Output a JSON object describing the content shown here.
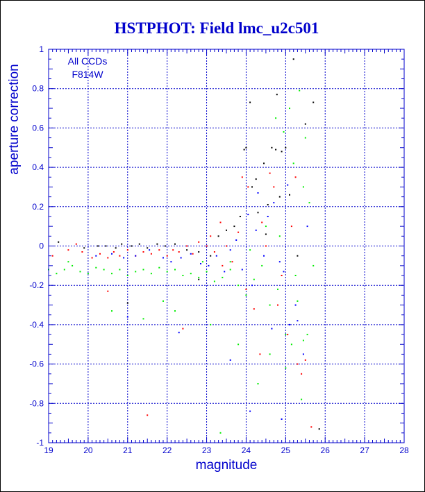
{
  "chart_data": {
    "type": "scatter",
    "title": "HSTPHOT: Field lmc_u2c501",
    "xlabel": "magnitude",
    "ylabel": "aperture correction",
    "xlim": [
      19,
      28
    ],
    "ylim": [
      -1,
      1
    ],
    "x_ticks": [
      "19",
      "20",
      "21",
      "22",
      "23",
      "24",
      "25",
      "26",
      "27",
      "28"
    ],
    "y_ticks": [
      "-1",
      "-0.8",
      "-0.6",
      "-0.4",
      "-0.2",
      "0",
      "0.2",
      "0.4",
      "0.6",
      "0.8",
      "1"
    ],
    "grid": true,
    "annotations": [
      "All CCDs",
      "F814W"
    ],
    "colors": {
      "title": "#0000cc",
      "axes": "#0000cc",
      "grid": "#0000cc",
      "black_series": "#000000",
      "red_series": "#ff0000",
      "blue_series": "#0000ff",
      "green_series": "#00ee00"
    },
    "series": [
      {
        "color": "#000000",
        "points": [
          [
            19.25,
            0.02
          ],
          [
            19.9,
            -0.01
          ],
          [
            20.25,
            0.0
          ],
          [
            20.45,
            0.0
          ],
          [
            20.7,
            -0.01
          ],
          [
            20.85,
            0.01
          ],
          [
            21.1,
            0.0
          ],
          [
            21.3,
            0.01
          ],
          [
            21.5,
            -0.01
          ],
          [
            21.75,
            0.01
          ],
          [
            21.95,
            0.0
          ],
          [
            22.2,
            0.01
          ],
          [
            22.5,
            -0.02
          ],
          [
            22.8,
            -0.03
          ],
          [
            23.1,
            -0.05
          ],
          [
            23.3,
            0.05
          ],
          [
            23.5,
            0.08
          ],
          [
            23.7,
            0.1
          ],
          [
            23.85,
            0.15
          ],
          [
            23.95,
            0.49
          ],
          [
            24.0,
            0.5
          ],
          [
            24.15,
            0.3
          ],
          [
            24.25,
            0.34
          ],
          [
            24.3,
            0.17
          ],
          [
            24.45,
            0.42
          ],
          [
            24.5,
            0.06
          ],
          [
            24.55,
            0.21
          ],
          [
            24.65,
            0.5
          ],
          [
            24.75,
            0.49
          ],
          [
            24.78,
            0.77
          ],
          [
            24.85,
            0.25
          ],
          [
            24.9,
            0.48
          ],
          [
            25.0,
            0.5
          ],
          [
            25.1,
            0.26
          ],
          [
            25.2,
            0.95
          ],
          [
            25.3,
            -0.05
          ],
          [
            25.5,
            0.62
          ],
          [
            25.7,
            0.73
          ],
          [
            24.1,
            0.73
          ],
          [
            25.85,
            -0.93
          ],
          [
            22.8,
            -0.17
          ],
          [
            21.0,
            -0.29
          ]
        ]
      },
      {
        "color": "#ff0000",
        "points": [
          [
            19.1,
            -0.05
          ],
          [
            19.5,
            -0.02
          ],
          [
            19.7,
            0.01
          ],
          [
            19.85,
            -0.03
          ],
          [
            20.1,
            -0.06
          ],
          [
            20.3,
            -0.04
          ],
          [
            20.5,
            -0.06
          ],
          [
            20.65,
            -0.03
          ],
          [
            20.8,
            -0.05
          ],
          [
            21.0,
            -0.02
          ],
          [
            21.2,
            -0.05
          ],
          [
            21.4,
            -0.03
          ],
          [
            21.6,
            -0.04
          ],
          [
            21.8,
            -0.02
          ],
          [
            22.0,
            -0.05
          ],
          [
            22.15,
            -0.02
          ],
          [
            22.3,
            -0.03
          ],
          [
            22.5,
            0.0
          ],
          [
            22.65,
            -0.04
          ],
          [
            22.8,
            0.02
          ],
          [
            23.0,
            0.0
          ],
          [
            23.1,
            0.05
          ],
          [
            23.2,
            -0.03
          ],
          [
            23.35,
            0.12
          ],
          [
            23.5,
            0.0
          ],
          [
            23.65,
            -0.08
          ],
          [
            23.8,
            0.07
          ],
          [
            23.9,
            0.35
          ],
          [
            24.05,
            0.3
          ],
          [
            24.2,
            -0.32
          ],
          [
            24.35,
            -0.55
          ],
          [
            24.5,
            0.0
          ],
          [
            24.6,
            0.37
          ],
          [
            24.7,
            0.3
          ],
          [
            24.8,
            -0.3
          ],
          [
            24.9,
            -0.15
          ],
          [
            25.05,
            -0.45
          ],
          [
            25.15,
            0.1
          ],
          [
            25.3,
            -0.6
          ],
          [
            25.4,
            -0.65
          ],
          [
            25.5,
            -0.58
          ],
          [
            25.65,
            -0.92
          ],
          [
            21.5,
            -0.86
          ],
          [
            20.5,
            -0.23
          ],
          [
            22.4,
            -0.42
          ],
          [
            23.4,
            -0.1
          ],
          [
            24.0,
            -0.22
          ],
          [
            24.4,
            0.12
          ],
          [
            25.25,
            0.35
          ]
        ]
      },
      {
        "color": "#0000ff",
        "points": [
          [
            20.2,
            -0.05
          ],
          [
            20.6,
            -0.04
          ],
          [
            20.9,
            -0.06
          ],
          [
            21.2,
            -0.05
          ],
          [
            21.55,
            -0.02
          ],
          [
            21.9,
            -0.06
          ],
          [
            22.1,
            -0.08
          ],
          [
            22.35,
            -0.06
          ],
          [
            22.6,
            -0.04
          ],
          [
            22.85,
            -0.09
          ],
          [
            23.05,
            -0.1
          ],
          [
            23.25,
            -0.05
          ],
          [
            23.45,
            -0.13
          ],
          [
            23.6,
            -0.02
          ],
          [
            23.75,
            0.03
          ],
          [
            23.9,
            -0.12
          ],
          [
            24.05,
            0.16
          ],
          [
            24.15,
            -0.2
          ],
          [
            24.3,
            0.27
          ],
          [
            24.45,
            -0.05
          ],
          [
            24.55,
            0.15
          ],
          [
            24.7,
            0.22
          ],
          [
            24.85,
            -0.08
          ],
          [
            24.95,
            -0.13
          ],
          [
            25.05,
            0.31
          ],
          [
            25.1,
            -0.4
          ],
          [
            25.25,
            -0.3
          ],
          [
            25.3,
            -0.38
          ],
          [
            25.45,
            -0.55
          ],
          [
            25.55,
            0.1
          ],
          [
            22.3,
            -0.44
          ],
          [
            23.6,
            -0.58
          ],
          [
            24.1,
            -0.84
          ],
          [
            24.9,
            -0.88
          ],
          [
            21.0,
            -0.36
          ],
          [
            24.25,
            0.08
          ],
          [
            24.65,
            -0.42
          ]
        ]
      },
      {
        "color": "#00ee00",
        "points": [
          [
            19.0,
            -0.12
          ],
          [
            19.2,
            -0.14
          ],
          [
            19.4,
            -0.12
          ],
          [
            19.6,
            -0.1
          ],
          [
            19.8,
            -0.13
          ],
          [
            20.0,
            -0.14
          ],
          [
            20.2,
            -0.11
          ],
          [
            20.4,
            -0.12
          ],
          [
            20.6,
            -0.14
          ],
          [
            20.8,
            -0.12
          ],
          [
            21.0,
            -0.15
          ],
          [
            21.2,
            -0.13
          ],
          [
            21.4,
            -0.12
          ],
          [
            21.6,
            -0.14
          ],
          [
            21.8,
            -0.11
          ],
          [
            22.0,
            -0.13
          ],
          [
            22.2,
            -0.12
          ],
          [
            22.4,
            -0.15
          ],
          [
            22.6,
            -0.14
          ],
          [
            22.8,
            -0.16
          ],
          [
            23.0,
            -0.13
          ],
          [
            23.2,
            -0.18
          ],
          [
            23.4,
            -0.16
          ],
          [
            23.6,
            -0.12
          ],
          [
            23.8,
            -0.2
          ],
          [
            24.0,
            -0.25
          ],
          [
            24.2,
            -0.17
          ],
          [
            24.4,
            -0.1
          ],
          [
            24.6,
            -0.3
          ],
          [
            24.8,
            -0.22
          ],
          [
            25.0,
            -0.45
          ],
          [
            25.15,
            -0.5
          ],
          [
            25.3,
            -0.28
          ],
          [
            25.45,
            -0.48
          ],
          [
            25.6,
            0.22
          ],
          [
            25.7,
            -0.1
          ],
          [
            25.5,
            0.55
          ],
          [
            25.35,
            0.79
          ],
          [
            25.1,
            0.7
          ],
          [
            24.75,
            0.65
          ],
          [
            24.95,
            0.58
          ],
          [
            25.2,
            0.42
          ],
          [
            25.45,
            0.3
          ],
          [
            20.6,
            -0.33
          ],
          [
            21.4,
            -0.37
          ],
          [
            22.2,
            -0.33
          ],
          [
            23.1,
            -0.4
          ],
          [
            23.35,
            -0.95
          ],
          [
            23.8,
            -0.5
          ],
          [
            24.3,
            -0.7
          ],
          [
            24.6,
            -0.55
          ],
          [
            25.0,
            -0.62
          ],
          [
            25.4,
            -0.78
          ],
          [
            25.55,
            -0.45
          ],
          [
            21.9,
            -0.28
          ],
          [
            19.5,
            -0.08
          ],
          [
            22.9,
            -0.08
          ],
          [
            23.6,
            -0.08
          ],
          [
            24.1,
            -0.02
          ],
          [
            24.5,
            0.1
          ],
          [
            24.85,
            0.05
          ],
          [
            25.25,
            -0.15
          ]
        ]
      }
    ]
  }
}
